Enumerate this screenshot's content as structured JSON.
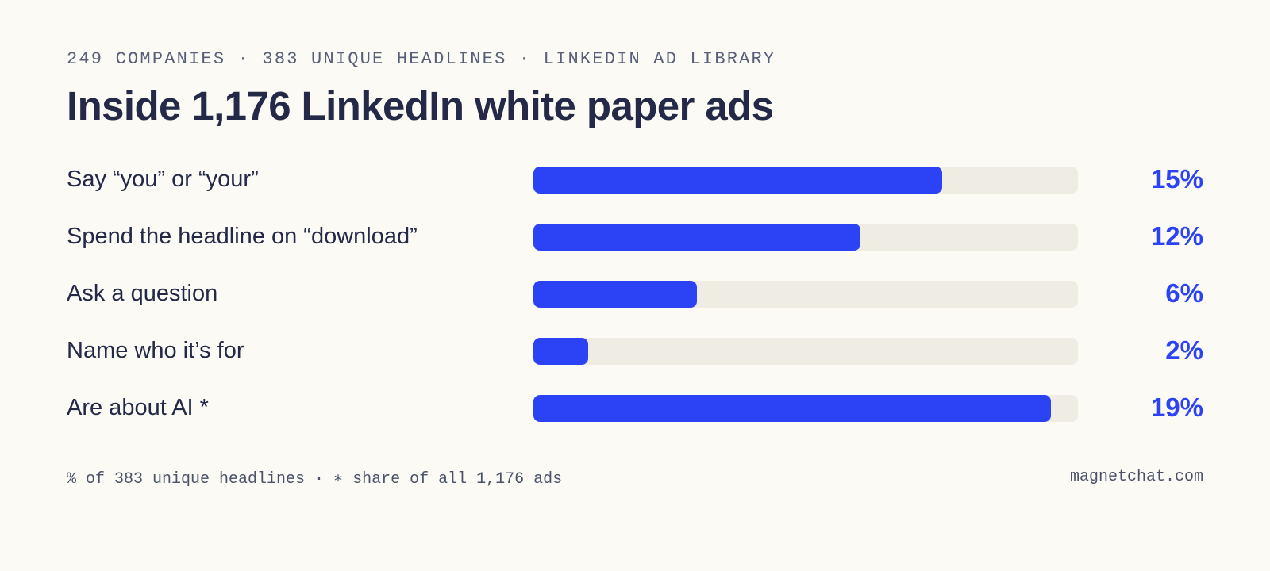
{
  "header": {
    "kicker": "249 COMPANIES · 383 UNIQUE HEADLINES · LINKEDIN AD LIBRARY",
    "title": "Inside 1,176 LinkedIn white paper ads"
  },
  "chart_data": {
    "type": "bar",
    "orientation": "horizontal",
    "title": "Inside 1,176 LinkedIn white paper ads",
    "categories": [
      "Say “you” or “your”",
      "Spend the headline on “download”",
      "Ask a question",
      "Name who it’s for",
      "Are about AI *"
    ],
    "values": [
      15,
      12,
      6,
      2,
      19
    ],
    "value_labels": [
      "15%",
      "12%",
      "6%",
      "2%",
      "19%"
    ],
    "unit": "%",
    "xlim": [
      0,
      20
    ],
    "grid": false,
    "legend": "none",
    "colors": {
      "bar": "#2b43f5",
      "track": "#efede3",
      "value_text": "#2b43f5"
    }
  },
  "footer": {
    "note": "% of 383 unique headlines · ∗ share of all 1,176 ads",
    "source": "magnetchat.com"
  },
  "colors": {
    "background": "#fbfaf5",
    "text": "#232947",
    "accent": "#2b43f5"
  }
}
